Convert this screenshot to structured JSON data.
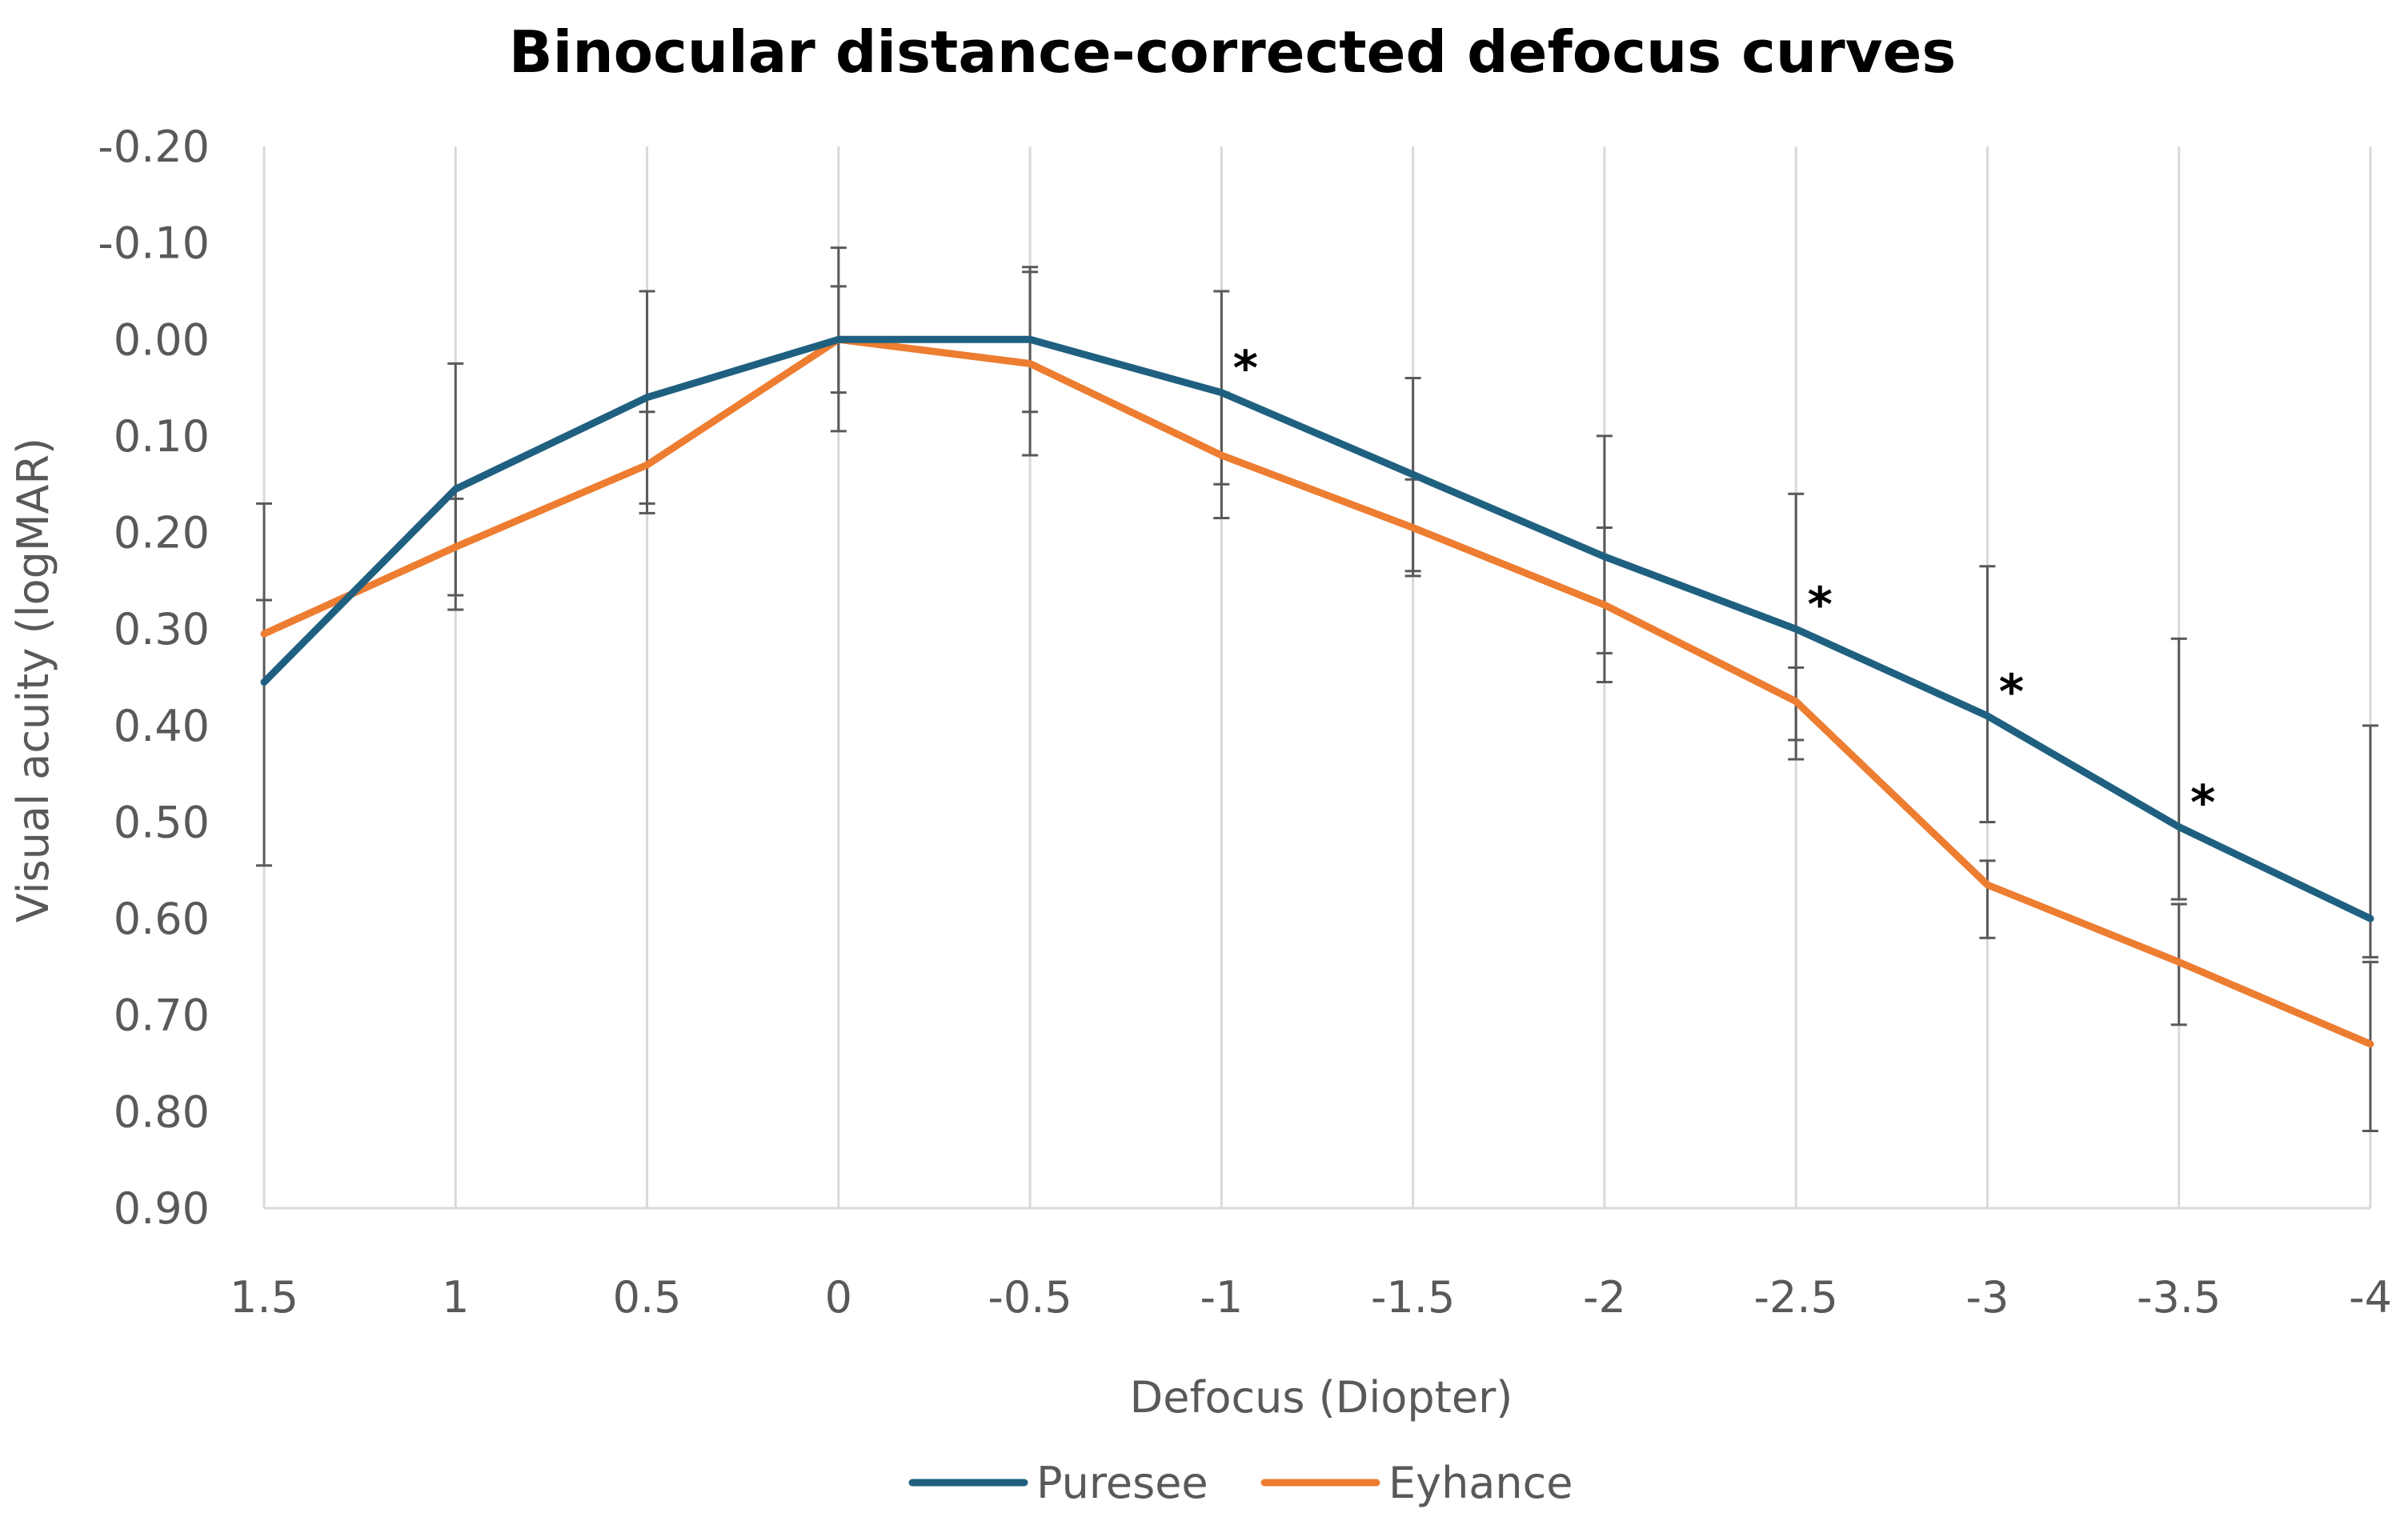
{
  "chart_data": {
    "type": "line",
    "title": "Binocular distance-corrected defocus curves",
    "xlabel": "Defocus (Diopter)",
    "ylabel": "Visual acuity (logMAR)",
    "ylim": [
      -0.2,
      0.9
    ],
    "y_reversed": true,
    "y_ticks": [
      "-0.20",
      "-0.10",
      "0.00",
      "0.10",
      "0.20",
      "0.30",
      "0.40",
      "0.50",
      "0.60",
      "0.70",
      "0.80",
      "0.90"
    ],
    "y_tick_values": [
      -0.2,
      -0.1,
      0.0,
      0.1,
      0.2,
      0.3,
      0.4,
      0.5,
      0.6,
      0.7,
      0.8,
      0.9
    ],
    "categories": [
      "1.5",
      "1",
      "0.5",
      "0",
      "-0.5",
      "-1",
      "-1.5",
      "-2",
      "-2.5",
      "-3",
      "-3.5",
      "-4"
    ],
    "series": [
      {
        "name": "Puresee",
        "color": "#1F6080",
        "values": [
          0.355,
          0.155,
          0.06,
          0.0,
          0.0,
          0.055,
          0.14,
          0.225,
          0.3,
          0.39,
          0.505,
          0.6
        ],
        "error_low": [
          0.545,
          0.28,
          0.17,
          0.095,
          0.075,
          0.15,
          0.24,
          0.325,
          0.415,
          0.5,
          0.58,
          0.64
        ],
        "error_high": [
          0.17,
          0.025,
          -0.05,
          -0.095,
          -0.07,
          -0.05,
          0.04,
          0.1,
          0.16,
          0.235,
          0.31,
          0.4
        ]
      },
      {
        "name": "Eyhance",
        "color": "#ED7D31",
        "values": [
          0.305,
          0.215,
          0.13,
          0.0,
          0.025,
          0.12,
          0.195,
          0.275,
          0.375,
          0.565,
          0.645,
          0.73
        ],
        "error_low": [
          0.27,
          0.265,
          0.18,
          0.055,
          0.12,
          0.185,
          0.245,
          0.355,
          0.435,
          0.62,
          0.71,
          0.82
        ],
        "error_high": [
          0.27,
          0.165,
          0.075,
          -0.055,
          -0.075,
          0.055,
          0.145,
          0.195,
          0.34,
          0.54,
          0.585,
          0.645
        ]
      }
    ],
    "significance_marker": "*",
    "significant_categories": [
      "-1",
      "-2.5",
      "-3",
      "-3.5"
    ],
    "legend": [
      "Puresee",
      "Eyhance"
    ],
    "legend_position": "bottom",
    "grid": "vertical"
  }
}
